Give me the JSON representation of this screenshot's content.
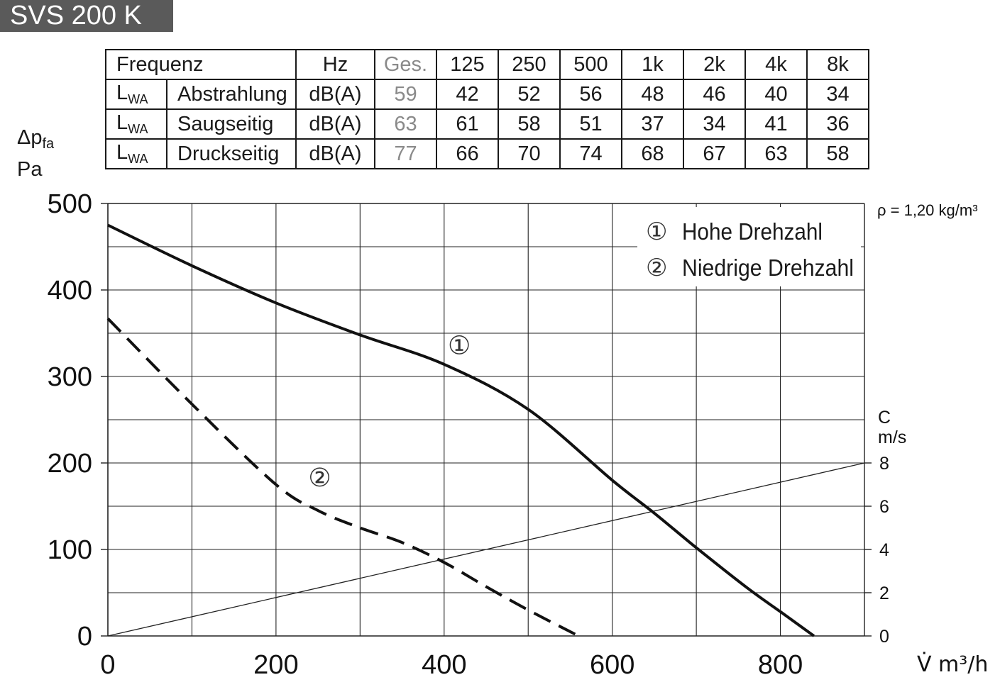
{
  "title": "SVS 200 K",
  "table": {
    "header": [
      "Frequenz",
      "Hz",
      "Ges.",
      "125",
      "250",
      "500",
      "1k",
      "2k",
      "4k",
      "8k"
    ],
    "rows": [
      {
        "sym": "L",
        "sub": "WA",
        "label": "Abstrahlung",
        "unit": "dB(A)",
        "values": [
          "59",
          "42",
          "52",
          "56",
          "48",
          "46",
          "40",
          "34"
        ]
      },
      {
        "sym": "L",
        "sub": "WA",
        "label": "Saugseitig",
        "unit": "dB(A)",
        "values": [
          "63",
          "61",
          "58",
          "51",
          "37",
          "34",
          "41",
          "36"
        ]
      },
      {
        "sym": "L",
        "sub": "WA",
        "label": "Druckseitig",
        "unit": "dB(A)",
        "values": [
          "77",
          "66",
          "70",
          "74",
          "68",
          "67",
          "63",
          "58"
        ]
      }
    ]
  },
  "chart_data": {
    "type": "line",
    "ylabel_symbol": "Δp",
    "ylabel_sub": "fa",
    "ylabel_unit": "Pa",
    "xlabel": "V̇ m³/h",
    "xlim": [
      0,
      900
    ],
    "ylim": [
      0,
      500
    ],
    "x_ticks": [
      "0",
      "200",
      "400",
      "600",
      "800"
    ],
    "y_ticks": [
      "0",
      "100",
      "200",
      "300",
      "400",
      "500"
    ],
    "density_note": "ρ = 1,20 kg/m³",
    "right_axis": {
      "label": "C",
      "unit": "m/s",
      "ticks": [
        "0",
        "2",
        "4",
        "6",
        "8"
      ],
      "range": [
        0,
        8
      ]
    },
    "grid": true,
    "legend_position": "top-right",
    "legend": [
      {
        "marker": "①",
        "label": "Hohe Drehzahl"
      },
      {
        "marker": "②",
        "label": "Niedrige Drehzahl"
      }
    ],
    "series": [
      {
        "name": "Hohe Drehzahl",
        "marker": "①",
        "style": "solid",
        "x": [
          0,
          100,
          200,
          300,
          400,
          500,
          600,
          650,
          700,
          760,
          800,
          840
        ],
        "y": [
          475,
          428,
          385,
          348,
          314,
          262,
          180,
          142,
          102,
          56,
          28,
          0
        ]
      },
      {
        "name": "Niedrige Drehzahl",
        "marker": "②",
        "style": "dashed",
        "x": [
          0,
          100,
          200,
          250,
          300,
          350,
          400,
          450,
          500,
          560
        ],
        "y": [
          367,
          268,
          175,
          145,
          125,
          108,
          85,
          57,
          30,
          0
        ]
      }
    ],
    "velocity_line": {
      "x": [
        0,
        900
      ],
      "c": [
        0,
        8
      ]
    },
    "curve_labels": [
      {
        "marker": "①",
        "x": 418,
        "y": 326
      },
      {
        "marker": "②",
        "x": 252,
        "y": 173
      }
    ]
  }
}
